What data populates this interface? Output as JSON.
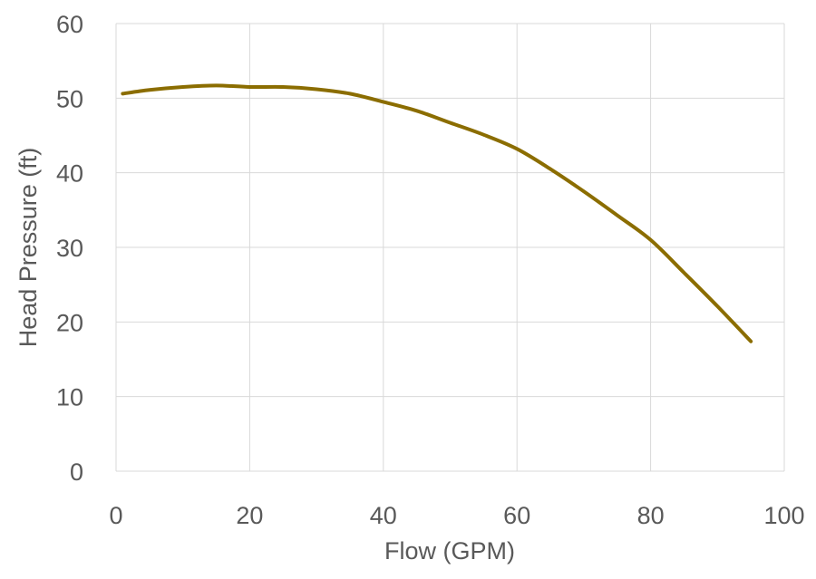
{
  "chart_data": {
    "type": "line",
    "title": "",
    "xlabel": "Flow (GPM)",
    "ylabel": "Head Pressure (ft)",
    "xlim": [
      0,
      100
    ],
    "ylim": [
      0,
      60
    ],
    "xticks": [
      0,
      20,
      40,
      60,
      80,
      100
    ],
    "yticks": [
      0,
      10,
      20,
      30,
      40,
      50,
      60
    ],
    "xtick_labels": [
      "0",
      "20",
      "40",
      "60",
      "80",
      "100"
    ],
    "ytick_labels": [
      "0",
      "10",
      "20",
      "30",
      "40",
      "50",
      "60"
    ],
    "grid": true,
    "legend": "none",
    "series": [
      {
        "color": "#8b6d00",
        "x": [
          1,
          5,
          10,
          15,
          20,
          25,
          30,
          35,
          40,
          45,
          50,
          55,
          60,
          65,
          70,
          75,
          80,
          85,
          90,
          95
        ],
        "y": [
          50.6,
          51.1,
          51.5,
          51.7,
          51.5,
          51.5,
          51.2,
          50.6,
          49.5,
          48.3,
          46.7,
          45.1,
          43.2,
          40.5,
          37.5,
          34.3,
          31.0,
          26.6,
          22.1,
          17.4
        ]
      }
    ]
  }
}
